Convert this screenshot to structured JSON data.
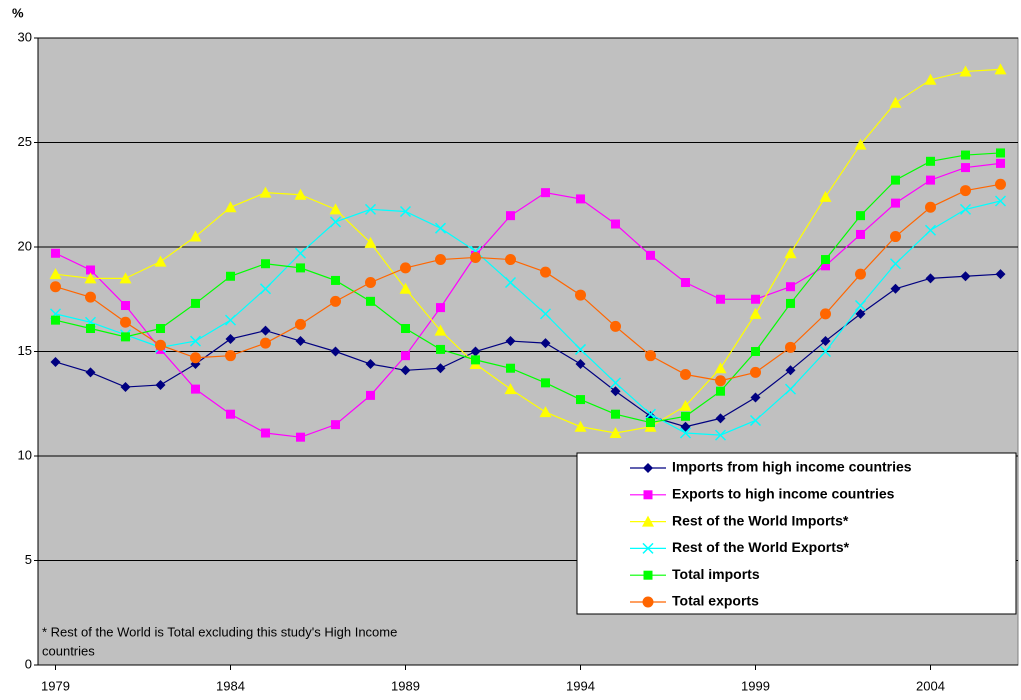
{
  "chart_data": {
    "type": "line",
    "y_label": "%",
    "annotation": [
      "* Rest of the World is Total excluding this study's High Income",
      "countries"
    ],
    "x": [
      1979,
      1980,
      1981,
      1982,
      1983,
      1984,
      1985,
      1986,
      1987,
      1988,
      1989,
      1990,
      1991,
      1992,
      1993,
      1994,
      1995,
      1996,
      1997,
      1998,
      1999,
      2000,
      2001,
      2002,
      2003,
      2004,
      2005,
      2006
    ],
    "xlim": [
      1978.5,
      2006.5
    ],
    "xticks": [
      1979,
      1984,
      1989,
      1994,
      1999,
      2004
    ],
    "ylim": [
      0,
      30
    ],
    "yticks": [
      0,
      5,
      10,
      15,
      20,
      25,
      30
    ],
    "grid": true,
    "background": "#c0c0c0",
    "legend": "bottom-right",
    "series": [
      {
        "name": "Imports from high income countries",
        "color": "#000080",
        "marker": "diamond",
        "values": [
          14.5,
          14.0,
          13.3,
          13.4,
          14.4,
          15.6,
          16.0,
          15.5,
          15.0,
          14.4,
          14.1,
          14.2,
          15.0,
          15.5,
          15.4,
          14.4,
          13.1,
          11.9,
          11.4,
          11.8,
          12.8,
          14.1,
          15.5,
          16.8,
          18.0,
          18.5,
          18.6,
          18.7
        ]
      },
      {
        "name": "Exports to high income countries",
        "color": "#ff00ff",
        "marker": "square",
        "values": [
          19.7,
          18.9,
          17.2,
          15.1,
          13.2,
          12.0,
          11.1,
          10.9,
          11.5,
          12.9,
          14.8,
          17.1,
          19.6,
          21.5,
          22.6,
          22.3,
          21.1,
          19.6,
          18.3,
          17.5,
          17.5,
          18.1,
          19.1,
          20.6,
          22.1,
          23.2,
          23.8,
          24.0
        ]
      },
      {
        "name": "Rest of the World Imports*",
        "color": "#ffff00",
        "marker": "triangle",
        "values": [
          18.7,
          18.5,
          18.5,
          19.3,
          20.5,
          21.9,
          22.6,
          22.5,
          21.8,
          20.2,
          18.0,
          16.0,
          14.4,
          13.2,
          12.1,
          11.4,
          11.1,
          11.4,
          12.4,
          14.2,
          16.8,
          19.7,
          22.4,
          24.9,
          26.9,
          28.0,
          28.4,
          28.5
        ]
      },
      {
        "name": "Rest of the World Exports*",
        "color": "#00ffff",
        "marker": "x",
        "values": [
          16.8,
          16.4,
          15.8,
          15.2,
          15.5,
          16.5,
          18.0,
          19.7,
          21.2,
          21.8,
          21.7,
          20.9,
          19.8,
          18.3,
          16.8,
          15.1,
          13.5,
          12.0,
          11.1,
          11.0,
          11.7,
          13.2,
          15.0,
          17.2,
          19.2,
          20.8,
          21.8,
          22.2
        ]
      },
      {
        "name": "Total imports",
        "color": "#00ff00",
        "marker": "square",
        "values": [
          16.5,
          16.1,
          15.7,
          16.1,
          17.3,
          18.6,
          19.2,
          19.0,
          18.4,
          17.4,
          16.1,
          15.1,
          14.6,
          14.2,
          13.5,
          12.7,
          12.0,
          11.6,
          11.9,
          13.1,
          15.0,
          17.3,
          19.4,
          21.5,
          23.2,
          24.1,
          24.4,
          24.5
        ]
      },
      {
        "name": "Total exports",
        "color": "#ff6600",
        "marker": "circle",
        "values": [
          18.1,
          17.6,
          16.4,
          15.3,
          14.7,
          14.8,
          15.4,
          16.3,
          17.4,
          18.3,
          19.0,
          19.4,
          19.5,
          19.4,
          18.8,
          17.7,
          16.2,
          14.8,
          13.9,
          13.6,
          14.0,
          15.2,
          16.8,
          18.7,
          20.5,
          21.9,
          22.7,
          23.0
        ]
      }
    ]
  }
}
